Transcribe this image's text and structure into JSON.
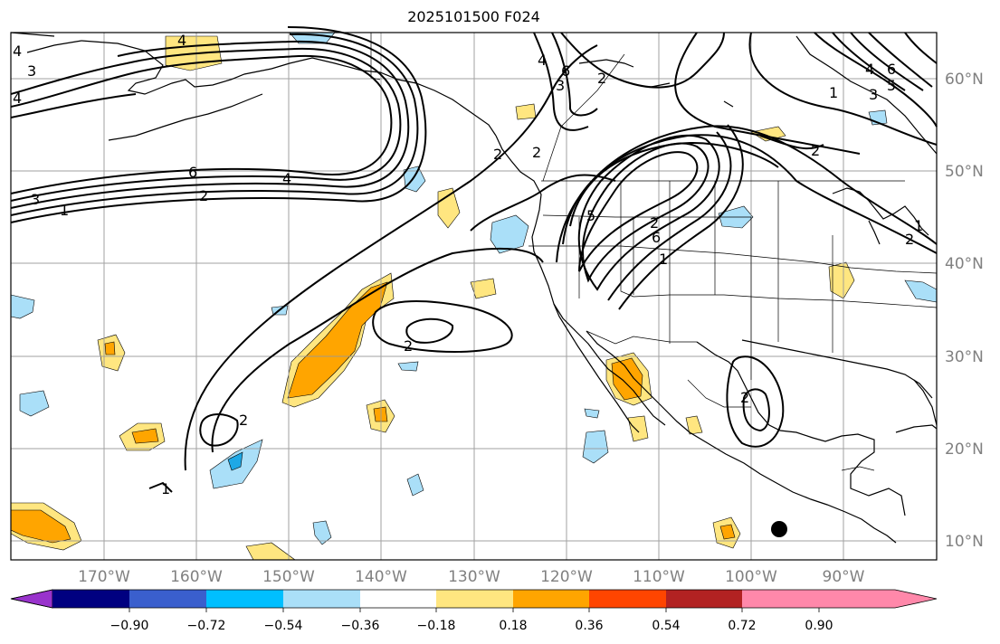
{
  "title": "2025101500 F024",
  "lon_labels": [
    "170°W",
    "160°W",
    "150°W",
    "140°W",
    "130°W",
    "120°W",
    "110°W",
    "100°W",
    "90°W"
  ],
  "lat_labels": [
    "60°N",
    "50°N",
    "40°N",
    "30°N",
    "20°N",
    "10°N"
  ],
  "colorbar": {
    "ticks": [
      "−0.90",
      "−0.72",
      "−0.54",
      "−0.36",
      "−0.18",
      "0.18",
      "0.36",
      "0.54",
      "0.72",
      "0.90"
    ],
    "colors": [
      "#9933cc",
      "#000080",
      "#3a5fcd",
      "#00bfff",
      "#aadff8",
      "#ffffff",
      "#ffe680",
      "#ffa500",
      "#ff4500",
      "#b22222",
      "#ff88aa"
    ]
  },
  "contour_labels": [
    "4",
    "3",
    "4",
    "6",
    "4",
    "2",
    "1",
    "3",
    "2",
    "2",
    "2",
    "2",
    "2",
    "2",
    "4",
    "6",
    "3",
    "1",
    "3",
    "5",
    "1",
    "6",
    "2",
    "6",
    "5",
    "4",
    "2",
    "1",
    "2",
    "1",
    "4"
  ],
  "shading_colors": {
    "yellow": "#ffe680",
    "orange": "#ffa500",
    "blue": "#aadff8",
    "mid_blue": "#1ea8e6"
  }
}
